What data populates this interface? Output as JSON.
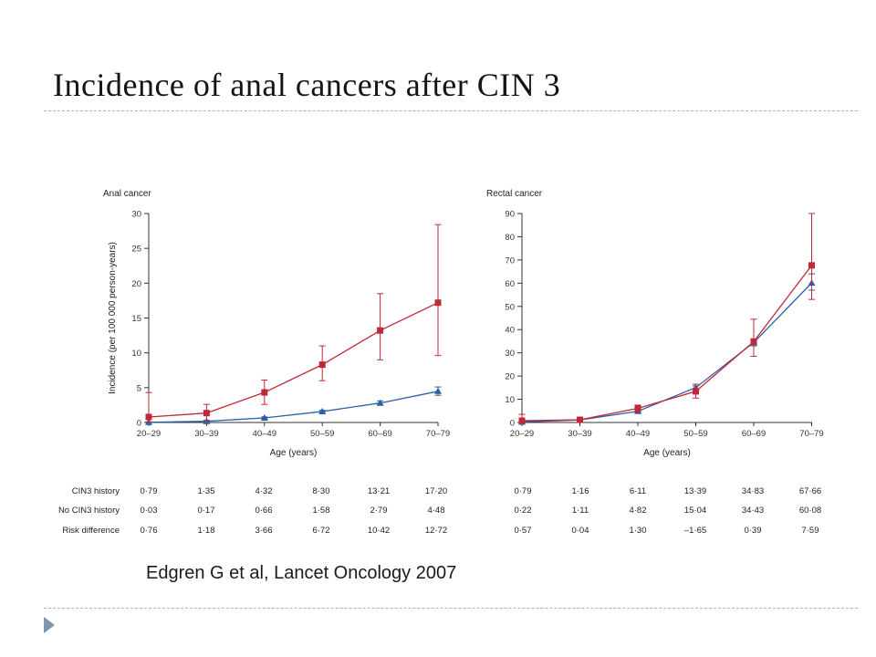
{
  "slide": {
    "title": "Incidence of anal cancers after CIN 3",
    "citation": "Edgren G et al, Lancet Oncology 2007"
  },
  "colors": {
    "cin3": "#c0283a",
    "no_cin3": "#2b5fa6"
  },
  "chart_data": [
    {
      "type": "line",
      "title": "Anal cancer",
      "xlabel": "Age (years)",
      "ylabel": "Incidence (per 100 000 person-years)",
      "categories": [
        "20–29",
        "30–39",
        "40–49",
        "50–59",
        "60–69",
        "70–79"
      ],
      "ylim": [
        0,
        30
      ],
      "yticks": [
        0,
        5,
        10,
        15,
        20,
        25,
        30
      ],
      "series": [
        {
          "name": "CIN3 history",
          "marker": "square",
          "values": [
            0.79,
            1.35,
            4.32,
            8.3,
            13.21,
            17.2
          ],
          "ci_low": [
            0,
            0.3,
            2.6,
            6.0,
            9.0,
            9.6
          ],
          "ci_high": [
            4.3,
            2.6,
            6.1,
            11.0,
            18.5,
            28.4
          ]
        },
        {
          "name": "No CIN3 history",
          "marker": "triangle",
          "values": [
            0.03,
            0.17,
            0.66,
            1.58,
            2.79,
            4.48
          ],
          "ci_low": [
            0,
            0.05,
            0.55,
            1.45,
            2.5,
            3.9
          ],
          "ci_high": [
            0.1,
            0.3,
            0.8,
            1.75,
            3.1,
            5.1
          ]
        }
      ],
      "table": {
        "rows": [
          {
            "label": "CIN3 history",
            "values": [
              "0·79",
              "1·35",
              "4·32",
              "8·30",
              "13·21",
              "17·20"
            ]
          },
          {
            "label": "No CIN3 history",
            "values": [
              "0·03",
              "0·17",
              "0·66",
              "1·58",
              "2·79",
              "4·48"
            ]
          },
          {
            "label": "Risk difference",
            "values": [
              "0·76",
              "1·18",
              "3·66",
              "6·72",
              "10·42",
              "12·72"
            ]
          }
        ]
      }
    },
    {
      "type": "line",
      "title": "Rectal cancer",
      "xlabel": "Age (years)",
      "ylabel": "",
      "categories": [
        "20–29",
        "30–39",
        "40–49",
        "50–59",
        "60–69",
        "70–79"
      ],
      "ylim": [
        0,
        90
      ],
      "yticks": [
        0,
        10,
        20,
        30,
        40,
        50,
        60,
        70,
        80,
        90
      ],
      "series": [
        {
          "name": "CIN3 history",
          "marker": "square",
          "values": [
            0.79,
            1.16,
            6.11,
            13.39,
            34.83,
            67.66
          ],
          "ci_low": [
            0,
            0.5,
            4.5,
            10.5,
            28.5,
            53.0
          ],
          "ci_high": [
            3.5,
            2.0,
            7.5,
            16.5,
            44.5,
            90.0
          ]
        },
        {
          "name": "No CIN3 history",
          "marker": "triangle",
          "values": [
            0.22,
            1.11,
            4.82,
            15.04,
            34.43,
            60.08
          ],
          "ci_low": [
            0,
            0.8,
            4.3,
            14.3,
            33.0,
            57.0
          ],
          "ci_high": [
            0.6,
            1.5,
            5.4,
            15.8,
            36.0,
            64.0
          ]
        }
      ],
      "table": {
        "rows": [
          {
            "label": "",
            "values": [
              "0·79",
              "1·16",
              "6·11",
              "13·39",
              "34·83",
              "67·66"
            ]
          },
          {
            "label": "",
            "values": [
              "0·22",
              "1·11",
              "4·82",
              "15·04",
              "34·43",
              "60·08"
            ]
          },
          {
            "label": "",
            "values": [
              "0·57",
              "0·04",
              "1·30",
              "–1·65",
              "0·39",
              "7·59"
            ]
          }
        ]
      }
    }
  ]
}
